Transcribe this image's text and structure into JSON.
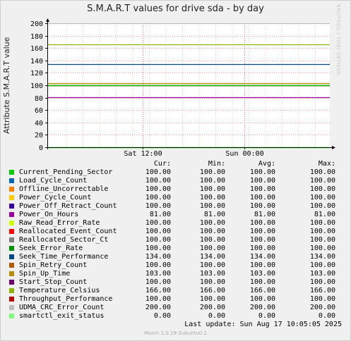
{
  "chart_data": {
    "type": "line",
    "title": "S.M.A.R.T values for drive sda - by day",
    "ylabel": "Attribute S.M.A.R.T value",
    "ylim": [
      0,
      200
    ],
    "yticks": [
      "0",
      "20",
      "40",
      "60",
      "80",
      "100",
      "120",
      "140",
      "160",
      "180",
      "200"
    ],
    "xticks": [
      "Sat 12:00",
      "Sun 00:00"
    ],
    "grid": true,
    "series": [
      {
        "name": "Current_Pending_Sector",
        "color": "#00cc00",
        "cur": "100.00",
        "min": "100.00",
        "avg": "100.00",
        "max": "100.00"
      },
      {
        "name": "Load_Cycle_Count",
        "color": "#0066b3",
        "cur": "100.00",
        "min": "100.00",
        "avg": "100.00",
        "max": "100.00"
      },
      {
        "name": "Offline_Uncorrectable",
        "color": "#ff8000",
        "cur": "100.00",
        "min": "100.00",
        "avg": "100.00",
        "max": "100.00"
      },
      {
        "name": "Power_Cycle_Count",
        "color": "#ffcc00",
        "cur": "100.00",
        "min": "100.00",
        "avg": "100.00",
        "max": "100.00"
      },
      {
        "name": "Power_Off_Retract_Count",
        "color": "#330099",
        "cur": "100.00",
        "min": "100.00",
        "avg": "100.00",
        "max": "100.00"
      },
      {
        "name": "Power_On_Hours",
        "color": "#990099",
        "cur": "81.00",
        "min": "81.00",
        "avg": "81.00",
        "max": "81.00"
      },
      {
        "name": "Raw_Read_Error_Rate",
        "color": "#ccff00",
        "cur": "100.00",
        "min": "100.00",
        "avg": "100.00",
        "max": "100.00"
      },
      {
        "name": "Reallocated_Event_Count",
        "color": "#ff0000",
        "cur": "100.00",
        "min": "100.00",
        "avg": "100.00",
        "max": "100.00"
      },
      {
        "name": "Reallocated_Sector_Ct",
        "color": "#808080",
        "cur": "100.00",
        "min": "100.00",
        "avg": "100.00",
        "max": "100.00"
      },
      {
        "name": "Seek_Error_Rate",
        "color": "#008f00",
        "cur": "100.00",
        "min": "100.00",
        "avg": "100.00",
        "max": "100.00"
      },
      {
        "name": "Seek_Time_Performance",
        "color": "#00487d",
        "cur": "134.00",
        "min": "134.00",
        "avg": "134.00",
        "max": "134.00"
      },
      {
        "name": "Spin_Retry_Count",
        "color": "#b35a00",
        "cur": "100.00",
        "min": "100.00",
        "avg": "100.00",
        "max": "100.00"
      },
      {
        "name": "Spin_Up_Time",
        "color": "#b38f00",
        "cur": "103.00",
        "min": "103.00",
        "avg": "103.00",
        "max": "103.00"
      },
      {
        "name": "Start_Stop_Count",
        "color": "#6b006b",
        "cur": "100.00",
        "min": "100.00",
        "avg": "100.00",
        "max": "100.00"
      },
      {
        "name": "Temperature_Celsius",
        "color": "#8fb300",
        "cur": "166.00",
        "min": "166.00",
        "avg": "166.00",
        "max": "166.00"
      },
      {
        "name": "Throughput_Performance",
        "color": "#b30000",
        "cur": "100.00",
        "min": "100.00",
        "avg": "100.00",
        "max": "100.00"
      },
      {
        "name": "UDMA_CRC_Error_Count",
        "color": "#bebebe",
        "cur": "200.00",
        "min": "200.00",
        "avg": "200.00",
        "max": "200.00"
      },
      {
        "name": "smartctl_exit_status",
        "color": "#80ff80",
        "cur": "0.00",
        "min": "0.00",
        "avg": "0.00",
        "max": "0.00"
      }
    ]
  },
  "legend_headers": {
    "cur": "Cur:",
    "min": "Min:",
    "avg": "Avg:",
    "max": "Max:"
  },
  "last_update": "Last update:  Sun Aug 17 10:05:05 2025",
  "footer": "Munin 2.0.19-3ubuntu0.2",
  "side_label": "RRDTOOL / TOBI OETIKER"
}
